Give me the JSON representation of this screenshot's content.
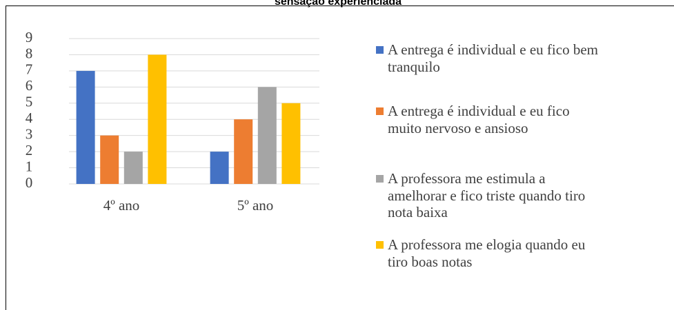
{
  "chart_data": {
    "type": "bar",
    "title": "sensação experienciada",
    "categories": [
      "4º ano",
      "5º ano"
    ],
    "series": [
      {
        "name": "A entrega é individual e eu fico bem tranquilo",
        "color": "#4472c4",
        "values": [
          7,
          2
        ]
      },
      {
        "name": "A entrega é individual e eu fico muito nervoso e ansioso",
        "color": "#ed7d31",
        "values": [
          3,
          4
        ]
      },
      {
        "name": "A professora me estimula a amelhorar e fico triste quando tiro nota baixa",
        "color": "#a5a5a5",
        "values": [
          2,
          6
        ]
      },
      {
        "name": "A professora me elogia quando eu tiro boas notas",
        "color": "#ffc000",
        "values": [
          8,
          5
        ]
      }
    ],
    "ylim": [
      0,
      9
    ],
    "yticks": [
      0,
      1,
      2,
      3,
      4,
      5,
      6,
      7,
      8,
      9
    ],
    "grid": true,
    "legend": "right"
  }
}
